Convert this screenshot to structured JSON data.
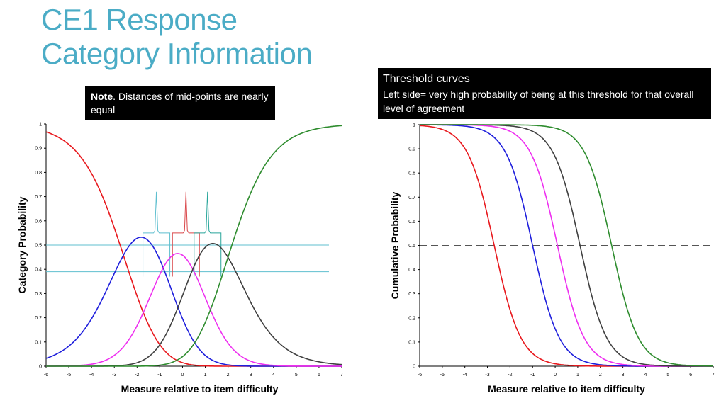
{
  "title_lines": [
    "CE1 Response",
    "Category Information"
  ],
  "note": {
    "bold": "Note",
    "text": ". Distances of mid-points are nearly equal"
  },
  "threshold_box": {
    "heading": "Threshold curves",
    "body": "Left side= very high probability of being at this threshold for that overall level of agreement"
  },
  "chart_data": [
    {
      "type": "line",
      "xlabel": "Measure relative to item difficulty",
      "ylabel": "Category  Probability",
      "xlim": [
        -6,
        7
      ],
      "ylim": [
        0,
        1
      ],
      "xticks": [
        "-6",
        "-5",
        "-4",
        "-3",
        "-2",
        "-1",
        "0",
        "1",
        "2",
        "3",
        "4",
        "5",
        "6",
        "7"
      ],
      "yticks": [
        "0",
        "0.1",
        "0.2",
        "0.3",
        "0.4",
        "0.5",
        "0.6",
        "0.7",
        "0.8",
        "0.9",
        "1"
      ],
      "thresholds": [
        -2.6,
        -0.85,
        0.45,
        2.0
      ],
      "series": [
        {
          "color": "#e8181d",
          "values": "computed from thresholds, category 1"
        },
        {
          "color": "#1f1fdc",
          "values": "category 2"
        },
        {
          "color": "#ee2ff0",
          "values": "category 3"
        },
        {
          "color": "#3f3f3f",
          "values": "category 4"
        },
        {
          "color": "#2e8c2e",
          "values": "category 5"
        },
        {
          "color": "#8c8a14",
          "values": "category 6"
        }
      ],
      "annotations": {
        "reference_lines_y": [
          0.5,
          0.39
        ],
        "bracket_colors": [
          "#5fbfcf",
          "#d9474a",
          "#28a59a"
        ],
        "bracket_midpoints_x": [
          -1.15,
          0.15,
          1.1
        ]
      }
    },
    {
      "type": "line",
      "xlabel": "Measure relative to item difficulty",
      "ylabel": "Cumulative Probability",
      "xlim": [
        -6,
        7
      ],
      "ylim": [
        0,
        1
      ],
      "xticks": [
        "-6",
        "-5",
        "-4",
        "-3",
        "-2",
        "-1",
        "0",
        "1",
        "2",
        "3",
        "4",
        "5",
        "6",
        "7"
      ],
      "yticks": [
        "0",
        "0.1",
        "0.2",
        "0.3",
        "0.4",
        "0.5",
        "0.6",
        "0.7",
        "0.8",
        "0.9",
        "1"
      ],
      "dashed_line_y": 0.5,
      "series": [
        {
          "color": "#e8181d",
          "midpoint": -2.7
        },
        {
          "color": "#1f1fdc",
          "midpoint": -1.0
        },
        {
          "color": "#ee2ff0",
          "midpoint": 0.1
        },
        {
          "color": "#3f3f3f",
          "midpoint": 1.1
        },
        {
          "color": "#2e8c2e",
          "midpoint": 2.5
        }
      ]
    }
  ]
}
